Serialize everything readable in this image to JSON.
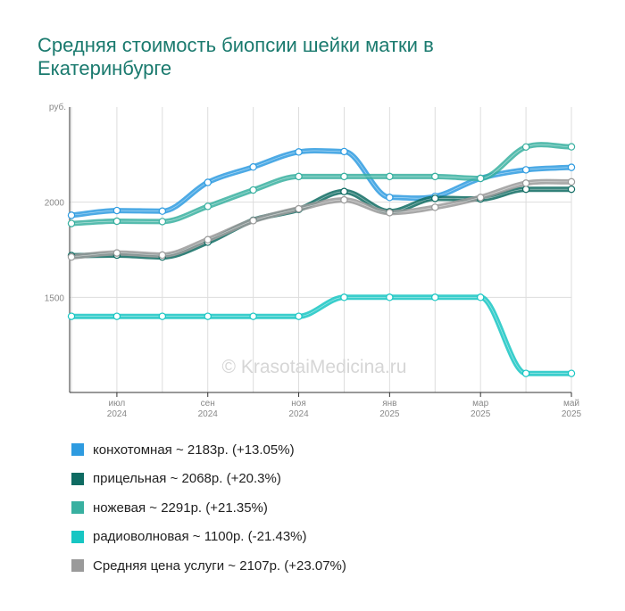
{
  "title": "Средняя стоимость биопсии шейки матки в Екатеринбурге",
  "watermark": "© KrasotaiMedicina.ru",
  "chart_data": {
    "type": "line",
    "y_unit": "руб.",
    "x": [
      "2024-06",
      "2024-07",
      "2024-08",
      "2024-09",
      "2024-10",
      "2024-11",
      "2024-12",
      "2025-01",
      "2025-02",
      "2025-03",
      "2025-04",
      "2025-05"
    ],
    "x_ticks": [
      {
        "i": 1,
        "line1": "июл",
        "line2": "2024"
      },
      {
        "i": 3,
        "line1": "сен",
        "line2": "2024"
      },
      {
        "i": 5,
        "line1": "ноя",
        "line2": "2024"
      },
      {
        "i": 7,
        "line1": "янв",
        "line2": "2025"
      },
      {
        "i": 9,
        "line1": "мар",
        "line2": "2025"
      },
      {
        "i": 11,
        "line1": "май",
        "line2": "2025"
      }
    ],
    "y_ticks": [
      1500,
      2000
    ],
    "ylim": [
      1000,
      2500
    ],
    "grid": true,
    "legend_position": "bottom",
    "series": [
      {
        "name": "конхотомная",
        "legend": "конхотомная ~ 2183р. (+13.05%)",
        "color": "#2e9be0",
        "values": [
          1931,
          1956,
          1953,
          2104,
          2185,
          2264,
          2266,
          2025,
          2030,
          2125,
          2170,
          2183
        ]
      },
      {
        "name": "прицельная",
        "legend": "прицельная ~ 2068р. (+20.3%)",
        "color": "#0e6b62",
        "values": [
          1719,
          1722,
          1712,
          1790,
          1905,
          1962,
          2056,
          1950,
          2020,
          2017,
          2068,
          2068
        ]
      },
      {
        "name": "ножевая",
        "legend": "ножевая ~ 2291р. (+21.35%)",
        "color": "#38b0a0",
        "values": [
          1888,
          1900,
          1898,
          1978,
          2064,
          2135,
          2135,
          2135,
          2135,
          2125,
          2290,
          2291
        ]
      },
      {
        "name": "радиоволновая",
        "legend": "радиоволновая ~ 1100р. (-21.43%)",
        "color": "#17c6c3",
        "values": [
          1400,
          1400,
          1400,
          1400,
          1400,
          1400,
          1500,
          1500,
          1500,
          1500,
          1100,
          1100
        ]
      },
      {
        "name": "Средняя цена услуги",
        "legend": "Средняя цена услуги ~ 2107р. (+23.07%)",
        "color": "#9a9a9a",
        "values": [
          1712,
          1733,
          1722,
          1803,
          1903,
          1965,
          2012,
          1945,
          1973,
          2025,
          2100,
          2107
        ]
      }
    ]
  }
}
